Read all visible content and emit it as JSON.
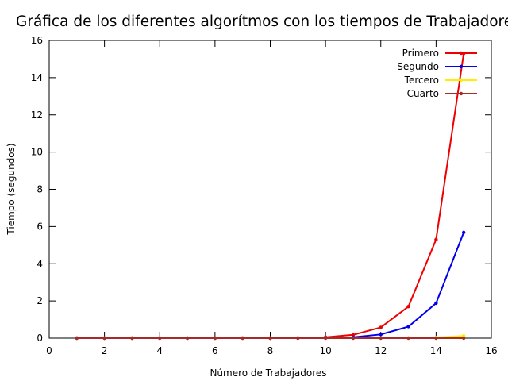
{
  "chart_data": {
    "type": "line",
    "title": "Gráfica de los diferentes algorítmos con los tiempos de Trabajadores",
    "xlabel": "Número de Trabajadores",
    "ylabel": "Tiempo (segundos)",
    "xlim": [
      0,
      16
    ],
    "ylim": [
      0,
      16
    ],
    "xticks": [
      0,
      2,
      4,
      6,
      8,
      10,
      12,
      14,
      16
    ],
    "yticks": [
      0,
      2,
      4,
      6,
      8,
      10,
      12,
      14,
      16
    ],
    "grid": false,
    "legend_position": "top-right",
    "x": [
      1,
      2,
      3,
      4,
      5,
      6,
      7,
      8,
      9,
      10,
      11,
      12,
      13,
      14,
      15
    ],
    "series": [
      {
        "name": "Primero",
        "color": "#ee0000",
        "values": [
          0,
          0,
          0,
          0,
          0,
          0,
          0,
          0,
          0.01,
          0.05,
          0.18,
          0.58,
          1.7,
          5.3,
          15.3
        ]
      },
      {
        "name": "Segundo",
        "color": "#0000ee",
        "values": [
          0,
          0,
          0,
          0,
          0,
          0,
          0,
          0,
          0,
          0.01,
          0.05,
          0.2,
          0.62,
          1.88,
          5.68
        ]
      },
      {
        "name": "Tercero",
        "color": "#ffee00",
        "values": [
          0,
          0,
          0,
          0,
          0,
          0,
          0,
          0,
          0,
          0,
          0,
          0,
          0.01,
          0.04,
          0.12
        ]
      },
      {
        "name": "Cuarto",
        "color": "#a52a2a",
        "values": [
          0,
          0,
          0,
          0,
          0,
          0,
          0,
          0,
          0,
          0,
          0,
          0,
          0,
          0,
          0
        ]
      }
    ]
  }
}
